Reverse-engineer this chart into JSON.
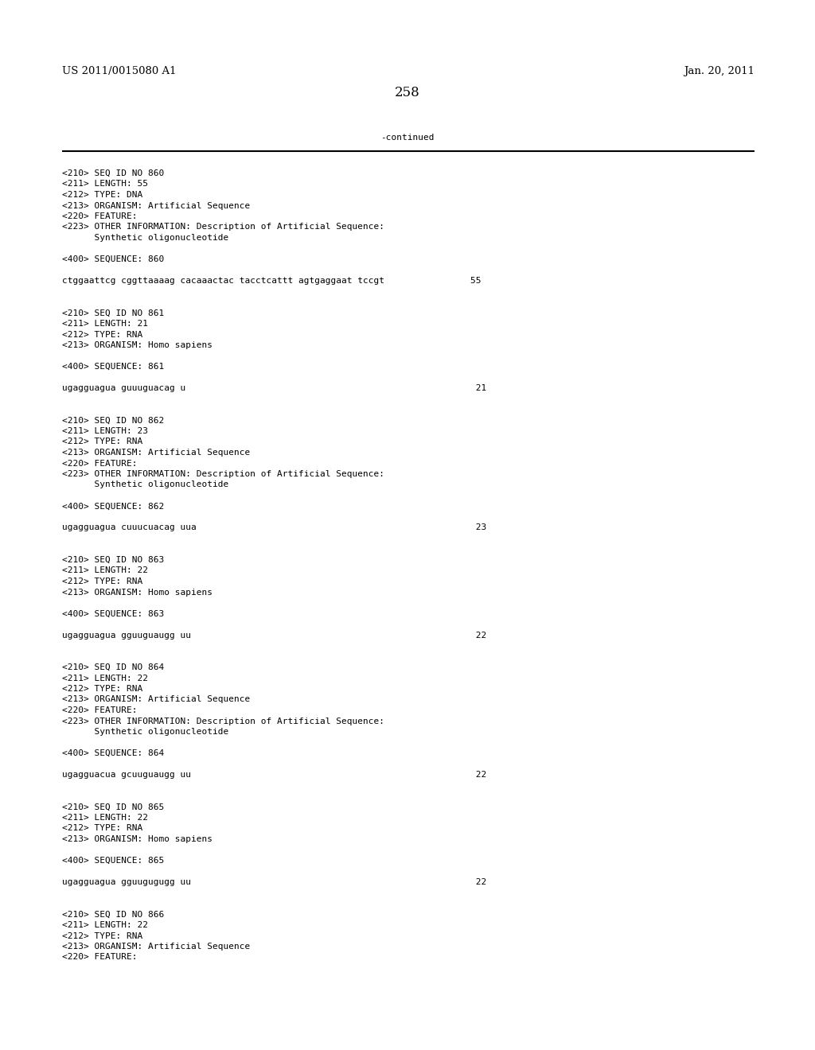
{
  "background_color": "#ffffff",
  "header_left": "US 2011/0015080 A1",
  "header_right": "Jan. 20, 2011",
  "page_number": "258",
  "continued_text": "-continued",
  "body_font_size": 8.0,
  "header_font_size": 9.5,
  "page_num_font_size": 12.0,
  "content_lines": [
    "<210> SEQ ID NO 860",
    "<211> LENGTH: 55",
    "<212> TYPE: DNA",
    "<213> ORGANISM: Artificial Sequence",
    "<220> FEATURE:",
    "<223> OTHER INFORMATION: Description of Artificial Sequence:",
    "      Synthetic oligonucleotide",
    "",
    "<400> SEQUENCE: 860",
    "",
    "ctggaattcg cggttaaaag cacaaactac tacctcattt agtgaggaat tccgt                55",
    "",
    "",
    "<210> SEQ ID NO 861",
    "<211> LENGTH: 21",
    "<212> TYPE: RNA",
    "<213> ORGANISM: Homo sapiens",
    "",
    "<400> SEQUENCE: 861",
    "",
    "ugagguagua guuuguacag u                                                      21",
    "",
    "",
    "<210> SEQ ID NO 862",
    "<211> LENGTH: 23",
    "<212> TYPE: RNA",
    "<213> ORGANISM: Artificial Sequence",
    "<220> FEATURE:",
    "<223> OTHER INFORMATION: Description of Artificial Sequence:",
    "      Synthetic oligonucleotide",
    "",
    "<400> SEQUENCE: 862",
    "",
    "ugagguagua cuuucuacag uua                                                    23",
    "",
    "",
    "<210> SEQ ID NO 863",
    "<211> LENGTH: 22",
    "<212> TYPE: RNA",
    "<213> ORGANISM: Homo sapiens",
    "",
    "<400> SEQUENCE: 863",
    "",
    "ugagguagua gguuguaugg uu                                                     22",
    "",
    "",
    "<210> SEQ ID NO 864",
    "<211> LENGTH: 22",
    "<212> TYPE: RNA",
    "<213> ORGANISM: Artificial Sequence",
    "<220> FEATURE:",
    "<223> OTHER INFORMATION: Description of Artificial Sequence:",
    "      Synthetic oligonucleotide",
    "",
    "<400> SEQUENCE: 864",
    "",
    "ugagguacua gcuuguaugg uu                                                     22",
    "",
    "",
    "<210> SEQ ID NO 865",
    "<211> LENGTH: 22",
    "<212> TYPE: RNA",
    "<213> ORGANISM: Homo sapiens",
    "",
    "<400> SEQUENCE: 865",
    "",
    "ugagguagua gguugugugg uu                                                     22",
    "",
    "",
    "<210> SEQ ID NO 866",
    "<211> LENGTH: 22",
    "<212> TYPE: RNA",
    "<213> ORGANISM: Artificial Sequence",
    "<220> FEATURE:"
  ]
}
